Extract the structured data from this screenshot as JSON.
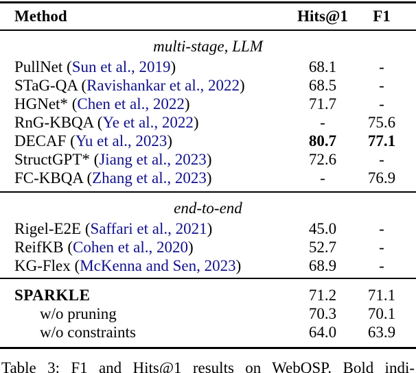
{
  "header": {
    "method": "Method",
    "hits": "Hits@1",
    "f1": "F1"
  },
  "sections": [
    {
      "label": "multi-stage, LLM",
      "rows": [
        {
          "name": "PullNet",
          "cite": "Sun et al., 2019",
          "hits": "68.1",
          "f1": "-"
        },
        {
          "name": "STaG-QA",
          "cite": "Ravishankar et al., 2022",
          "hits": "68.5",
          "f1": "-"
        },
        {
          "name": "HGNet*",
          "cite": "Chen et al., 2022",
          "hits": "71.7",
          "f1": "-"
        },
        {
          "name": "RnG-KBQA",
          "cite": "Ye et al., 2022",
          "hits": "-",
          "f1": "75.6"
        },
        {
          "name": "DECAF",
          "cite": "Yu et al., 2023",
          "hits": "80.7",
          "f1": "77.1",
          "bold": true
        },
        {
          "name": "StructGPT*",
          "cite": "Jiang et al., 2023",
          "hits": "72.6",
          "f1": "-"
        },
        {
          "name": "FC-KBQA",
          "cite": "Zhang et al., 2023",
          "hits": "-",
          "f1": "76.9"
        }
      ]
    },
    {
      "label": "end-to-end",
      "rows": [
        {
          "name": "Rigel-E2E",
          "cite": "Saffari et al., 2021",
          "hits": "45.0",
          "f1": "-"
        },
        {
          "name": "ReifKB",
          "cite": "Cohen et al., 2020",
          "hits": "52.7",
          "f1": "-"
        },
        {
          "name": "KG-Flex",
          "cite": "McKenna and Sen, 2023",
          "hits": "68.9",
          "f1": "-"
        }
      ]
    },
    {
      "label": "",
      "rows": [
        {
          "name": "SPARKLE",
          "hits": "71.2",
          "f1": "71.1"
        },
        {
          "name": "w/o pruning",
          "hits": "70.3",
          "f1": "70.1"
        },
        {
          "name": "w/o constraints",
          "hits": "64.0",
          "f1": "63.9"
        }
      ]
    }
  ],
  "caption": "Table 3: F1 and Hits@1 results on WebQSP. Bold indi-",
  "colors": {
    "text": "#000000",
    "citation_link": "#11118c",
    "rule": "#000000",
    "background": "#ffffff"
  }
}
